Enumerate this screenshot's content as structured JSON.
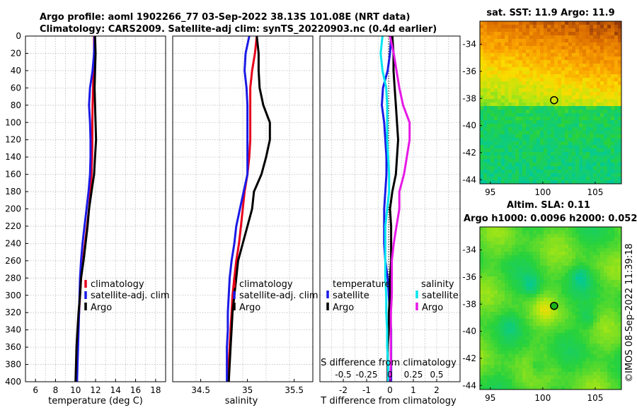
{
  "figure": {
    "title_line1": "Argo profile: aoml 1902266_77 03-Sep-2022 38.13S 101.08E (NRT data)",
    "title_line2": "Climatology: CARS2009. Satellite-adj clim: synTS_20220903.nc (0.4d earlier)",
    "credit": "©IMOS 08-Sep-2022 11:39:18"
  },
  "colors": {
    "climatology": "#e8001c",
    "satellite": "#1a1ae6",
    "argo": "#000000",
    "satellite_salinity": "#00e5f0",
    "argo_salinity": "#e619e6"
  },
  "chart_data": [
    {
      "type": "line",
      "id": "temperature",
      "xlabel": "temperature (deg C)",
      "xlim": [
        5,
        19
      ],
      "xticks": [
        6,
        8,
        10,
        12,
        14,
        16,
        18
      ],
      "ylim": [
        0,
        400
      ],
      "yticks": [
        0,
        20,
        40,
        60,
        80,
        100,
        120,
        140,
        160,
        180,
        200,
        220,
        240,
        260,
        280,
        300,
        320,
        340,
        360,
        380,
        400
      ],
      "y_reversed": true,
      "legend": [
        "climatology",
        "satellite-adj. clim",
        "Argo"
      ],
      "series": [
        {
          "name": "climatology",
          "color_key": "climatology",
          "x": [
            11.85,
            11.85,
            11.8,
            11.75,
            11.7,
            11.68,
            11.68,
            11.65,
            11.6,
            11.5,
            11.35,
            11.15,
            10.95,
            10.75,
            10.55,
            10.45,
            10.35,
            10.25,
            10.2,
            10.15,
            10.1
          ],
          "y": [
            0,
            20,
            40,
            60,
            80,
            100,
            120,
            140,
            160,
            180,
            200,
            220,
            240,
            260,
            280,
            300,
            320,
            340,
            360,
            380,
            400
          ]
        },
        {
          "name": "satellite-adj. clim",
          "color_key": "satellite",
          "x": [
            11.9,
            11.85,
            11.7,
            11.45,
            11.35,
            11.45,
            11.5,
            11.5,
            11.45,
            11.3,
            11.1,
            10.9,
            10.7,
            10.55,
            10.45,
            10.4,
            10.35,
            10.3,
            10.25,
            10.2,
            10.15
          ],
          "y": [
            0,
            20,
            40,
            60,
            80,
            100,
            120,
            140,
            160,
            180,
            200,
            220,
            240,
            260,
            280,
            300,
            320,
            340,
            360,
            380,
            400
          ]
        },
        {
          "name": "Argo",
          "color_key": "argo",
          "x": [
            11.95,
            12.0,
            11.95,
            11.9,
            11.95,
            12.0,
            12.05,
            11.95,
            11.85,
            11.6,
            11.35,
            11.2,
            11.0,
            10.8,
            10.55,
            10.45,
            10.3,
            10.2,
            10.1,
            10.05,
            10.0
          ],
          "y": [
            0,
            20,
            40,
            60,
            80,
            100,
            120,
            140,
            160,
            180,
            200,
            220,
            240,
            260,
            280,
            300,
            320,
            340,
            360,
            380,
            400
          ]
        }
      ]
    },
    {
      "type": "line",
      "id": "salinity",
      "xlabel": "salinity",
      "xlim": [
        34.2,
        35.7
      ],
      "xticks": [
        34.5,
        35,
        35.5
      ],
      "ylim": [
        0,
        400
      ],
      "y_reversed": true,
      "legend": [
        "climatology",
        "satellite-adj. clim",
        "Argo"
      ],
      "series": [
        {
          "name": "climatology",
          "color_key": "climatology",
          "x": [
            35.1,
            35.08,
            35.05,
            35.03,
            35.03,
            35.03,
            35.03,
            35.02,
            35.0,
            34.97,
            34.95,
            34.93,
            34.91,
            34.88,
            34.86,
            34.84,
            34.83,
            34.82,
            34.81,
            34.8,
            34.8
          ],
          "y": [
            0,
            20,
            40,
            60,
            80,
            100,
            120,
            140,
            160,
            180,
            200,
            220,
            240,
            260,
            280,
            300,
            320,
            340,
            360,
            380,
            400
          ]
        },
        {
          "name": "satellite-adj. clim",
          "color_key": "satellite",
          "x": [
            35.02,
            34.98,
            34.97,
            34.99,
            35.0,
            35.0,
            35.0,
            35.0,
            35.0,
            34.96,
            34.92,
            34.88,
            34.86,
            34.83,
            34.81,
            34.8,
            34.79,
            34.79,
            34.78,
            34.78,
            34.78
          ],
          "y": [
            0,
            20,
            40,
            60,
            80,
            100,
            120,
            140,
            160,
            180,
            200,
            220,
            240,
            260,
            280,
            300,
            320,
            340,
            360,
            380,
            400
          ]
        },
        {
          "name": "Argo",
          "color_key": "argo",
          "x": [
            35.1,
            35.12,
            35.12,
            35.13,
            35.17,
            35.24,
            35.24,
            35.2,
            35.15,
            35.07,
            35.05,
            35.0,
            34.95,
            34.9,
            34.88,
            34.86,
            34.84,
            34.83,
            34.82,
            34.81,
            34.8
          ],
          "y": [
            0,
            20,
            40,
            60,
            80,
            100,
            120,
            140,
            160,
            180,
            200,
            220,
            240,
            260,
            280,
            300,
            320,
            340,
            360,
            380,
            400
          ]
        }
      ]
    },
    {
      "type": "line",
      "id": "difference",
      "xlabel": "T difference from climatology",
      "xlim": [
        -3,
        3
      ],
      "xticks": [
        -2,
        -1,
        0,
        1,
        2
      ],
      "top_xlabel": "S difference from climatology",
      "top_xticks": [
        -0.5,
        -0.25,
        0,
        0.25,
        0.5
      ],
      "top_xlim": [
        -0.75,
        0.75
      ],
      "ylim": [
        0,
        400
      ],
      "y_reversed": true,
      "legend_headers": [
        "temperature",
        "salinity"
      ],
      "legend": [
        "satellite",
        "Argo",
        "satellite",
        "Argo"
      ],
      "series": [
        {
          "name": "T satellite",
          "color_key": "satellite",
          "axis": "T",
          "x": [
            0.05,
            0.0,
            -0.1,
            -0.3,
            -0.35,
            -0.25,
            -0.2,
            -0.15,
            -0.15,
            -0.2,
            -0.25,
            -0.25,
            -0.25,
            -0.2,
            -0.1,
            -0.05,
            0.0,
            0.05,
            0.05,
            0.05,
            0.05
          ],
          "y": [
            0,
            20,
            40,
            60,
            80,
            100,
            120,
            140,
            160,
            180,
            200,
            220,
            240,
            260,
            280,
            300,
            320,
            340,
            360,
            380,
            400
          ]
        },
        {
          "name": "T Argo",
          "color_key": "argo",
          "axis": "T",
          "x": [
            0.1,
            0.15,
            0.15,
            0.2,
            0.25,
            0.3,
            0.35,
            0.3,
            0.25,
            0.1,
            0.0,
            0.05,
            0.05,
            0.05,
            0.0,
            0.0,
            -0.05,
            -0.05,
            -0.1,
            -0.1,
            -0.1
          ],
          "y": [
            0,
            20,
            40,
            60,
            80,
            100,
            120,
            140,
            160,
            180,
            200,
            220,
            240,
            260,
            280,
            300,
            320,
            340,
            360,
            380,
            400
          ]
        },
        {
          "name": "S satellite",
          "color_key": "satellite_salinity",
          "axis": "S",
          "x": [
            -0.08,
            -0.1,
            -0.08,
            -0.04,
            -0.03,
            -0.03,
            -0.03,
            -0.02,
            -0.01,
            -0.01,
            -0.03,
            -0.05,
            -0.05,
            -0.05,
            -0.05,
            -0.04,
            -0.04,
            -0.03,
            -0.03,
            -0.02,
            -0.02
          ],
          "y": [
            0,
            20,
            40,
            60,
            80,
            100,
            120,
            140,
            160,
            180,
            200,
            220,
            240,
            260,
            280,
            300,
            320,
            340,
            360,
            380,
            400
          ]
        },
        {
          "name": "S Argo",
          "color_key": "argo_salinity",
          "axis": "S",
          "x": [
            0.0,
            0.04,
            0.07,
            0.1,
            0.14,
            0.21,
            0.21,
            0.18,
            0.15,
            0.1,
            0.1,
            0.07,
            0.04,
            0.02,
            0.02,
            0.02,
            0.01,
            0.01,
            0.01,
            0.01,
            0.0
          ],
          "y": [
            0,
            20,
            40,
            60,
            80,
            100,
            120,
            140,
            160,
            180,
            200,
            220,
            240,
            260,
            280,
            300,
            320,
            340,
            360,
            380,
            400
          ]
        }
      ]
    },
    {
      "type": "heatmap",
      "id": "sst_map",
      "title": "sat. SST: 11.9 Argo: 11.9",
      "xlim": [
        94,
        107.5
      ],
      "ylim": [
        -44.3,
        -32.3
      ],
      "xticks": [
        95,
        100,
        105
      ],
      "yticks": [
        -34,
        -36,
        -38,
        -40,
        -42,
        -44
      ],
      "marker": {
        "lon": 101.08,
        "lat": -38.13
      }
    },
    {
      "type": "heatmap",
      "id": "sla_map",
      "title_line1": "Altim. SLA: 0.11",
      "title_line2": "Argo h1000: 0.0096 h2000: 0.052",
      "xlim": [
        94,
        107.5
      ],
      "ylim": [
        -44.3,
        -32.3
      ],
      "xticks": [
        95,
        100,
        105
      ],
      "yticks": [
        -34,
        -36,
        -38,
        -40,
        -42,
        -44
      ],
      "marker": {
        "lon": 101.08,
        "lat": -38.13
      }
    }
  ]
}
